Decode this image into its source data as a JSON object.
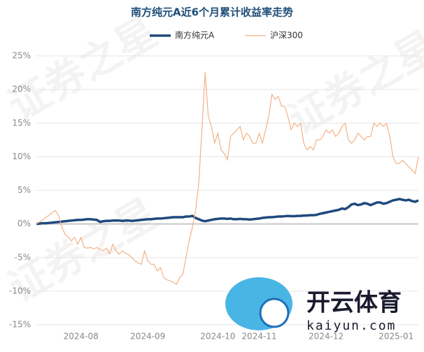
{
  "chart_data": {
    "type": "line",
    "title": "南方纯元A近6个月累计收益率走势",
    "categories": [
      null,
      null,
      null,
      null,
      null,
      null,
      null,
      null,
      null,
      null,
      null,
      null,
      null,
      null,
      "2024-08",
      null,
      null,
      null,
      null,
      null,
      null,
      null,
      null,
      null,
      null,
      null,
      null,
      null,
      null,
      null,
      null,
      null,
      null,
      null,
      null,
      "2024-09",
      null,
      null,
      null,
      null,
      null,
      null,
      null,
      null,
      null,
      null,
      null,
      null,
      null,
      null,
      null,
      null,
      null,
      null,
      null,
      null,
      null,
      "2024-10",
      null,
      null,
      null,
      null,
      null,
      null,
      null,
      null,
      null,
      null,
      null,
      null,
      "2024-11",
      null,
      null,
      null,
      null,
      null,
      null,
      null,
      null,
      null,
      null,
      null,
      null,
      null,
      null,
      null,
      null,
      null,
      null,
      null,
      null,
      "2024-12",
      null,
      null,
      null,
      null,
      null,
      null,
      null,
      null,
      null,
      null,
      null,
      null,
      null,
      null,
      null,
      null,
      null,
      null,
      null,
      null,
      null,
      "2025-01",
      null,
      null,
      null,
      null,
      null,
      null,
      null
    ],
    "series": [
      {
        "name": "南方纯元A",
        "color": "#1f497d",
        "width": 3.5,
        "values": [
          0,
          0.05,
          0.1,
          0.1,
          0.15,
          0.2,
          0.25,
          0.3,
          0.35,
          0.4,
          0.45,
          0.5,
          0.55,
          0.6,
          0.6,
          0.65,
          0.7,
          0.7,
          0.65,
          0.6,
          0.3,
          0.4,
          0.45,
          0.45,
          0.5,
          0.5,
          0.5,
          0.45,
          0.5,
          0.5,
          0.45,
          0.5,
          0.55,
          0.6,
          0.65,
          0.7,
          0.7,
          0.75,
          0.8,
          0.8,
          0.85,
          0.9,
          0.95,
          1,
          1,
          1,
          1,
          1.1,
          1.1,
          1.2,
          0.9,
          0.7,
          0.5,
          0.4,
          0.5,
          0.6,
          0.7,
          0.75,
          0.8,
          0.8,
          0.75,
          0.8,
          0.7,
          0.7,
          0.75,
          0.7,
          0.7,
          0.65,
          0.7,
          0.75,
          0.8,
          0.9,
          0.95,
          1,
          1,
          1.05,
          1.1,
          1.1,
          1.15,
          1.2,
          1.15,
          1.15,
          1.2,
          1.2,
          1.25,
          1.25,
          1.3,
          1.3,
          1.35,
          1.5,
          1.6,
          1.7,
          1.8,
          1.9,
          2,
          2.1,
          2.3,
          2.2,
          2.5,
          2.9,
          3,
          2.8,
          2.9,
          3.1,
          3,
          2.8,
          3,
          3.2,
          3.2,
          3,
          3.1,
          3.3,
          3.5,
          3.6,
          3.7,
          3.6,
          3.5,
          3.6,
          3.4,
          3.3,
          3.5
        ]
      },
      {
        "name": "沪深300",
        "color": "#f4b183",
        "width": 1.2,
        "values": [
          0,
          0.3,
          0.6,
          1,
          1.3,
          1.7,
          2,
          1.2,
          -0.5,
          -1.5,
          -2,
          -2.5,
          -2,
          -3,
          -2,
          -3.5,
          -3.6,
          -3.5,
          -3.7,
          -3.5,
          -3.8,
          -4,
          -3.6,
          -4.5,
          -3,
          -4,
          -4.5,
          -4,
          -4.4,
          -4.6,
          -5,
          -5.5,
          -5.8,
          -6,
          -4,
          -5.5,
          -6,
          -6,
          -7,
          -6.5,
          -8,
          -8.3,
          -8.5,
          -8.7,
          -9,
          -8,
          -7.5,
          -5,
          -2.5,
          -0.5,
          2,
          6,
          14,
          22.5,
          16,
          14.5,
          12,
          13.5,
          11,
          10.5,
          9.5,
          13,
          13.5,
          14,
          14.5,
          12.5,
          13.5,
          13,
          12,
          12,
          13.5,
          12,
          14,
          16,
          19.3,
          18.5,
          19,
          17.5,
          17.5,
          16,
          14,
          15,
          14.5,
          15,
          12,
          11,
          11.5,
          11,
          12.5,
          12.5,
          13,
          14,
          13.5,
          14,
          13,
          13.5,
          14.5,
          15,
          12.5,
          12,
          12.5,
          13.5,
          13,
          12.5,
          13,
          13,
          15,
          14.5,
          15,
          14.5,
          15,
          13,
          10,
          9,
          9,
          9.5,
          9,
          8.5,
          8,
          7.5,
          10
        ]
      }
    ],
    "ylim": [
      -15,
      25
    ],
    "yticks": [
      {
        "value": -15,
        "label": "-15%"
      },
      {
        "value": -10,
        "label": "-10%"
      },
      {
        "value": -5,
        "label": "-5%"
      },
      {
        "value": 0,
        "label": "0%"
      },
      {
        "value": 5,
        "label": "5%"
      },
      {
        "value": 10,
        "label": "10%"
      },
      {
        "value": 15,
        "label": "15%"
      },
      {
        "value": 20,
        "label": "20%"
      },
      {
        "value": 25,
        "label": "25%"
      }
    ],
    "grid": true,
    "legend": "top"
  },
  "overlay": {
    "watermark": "证券之星",
    "logo_text": "开云体育",
    "logo_url": "kaiyun.com"
  }
}
